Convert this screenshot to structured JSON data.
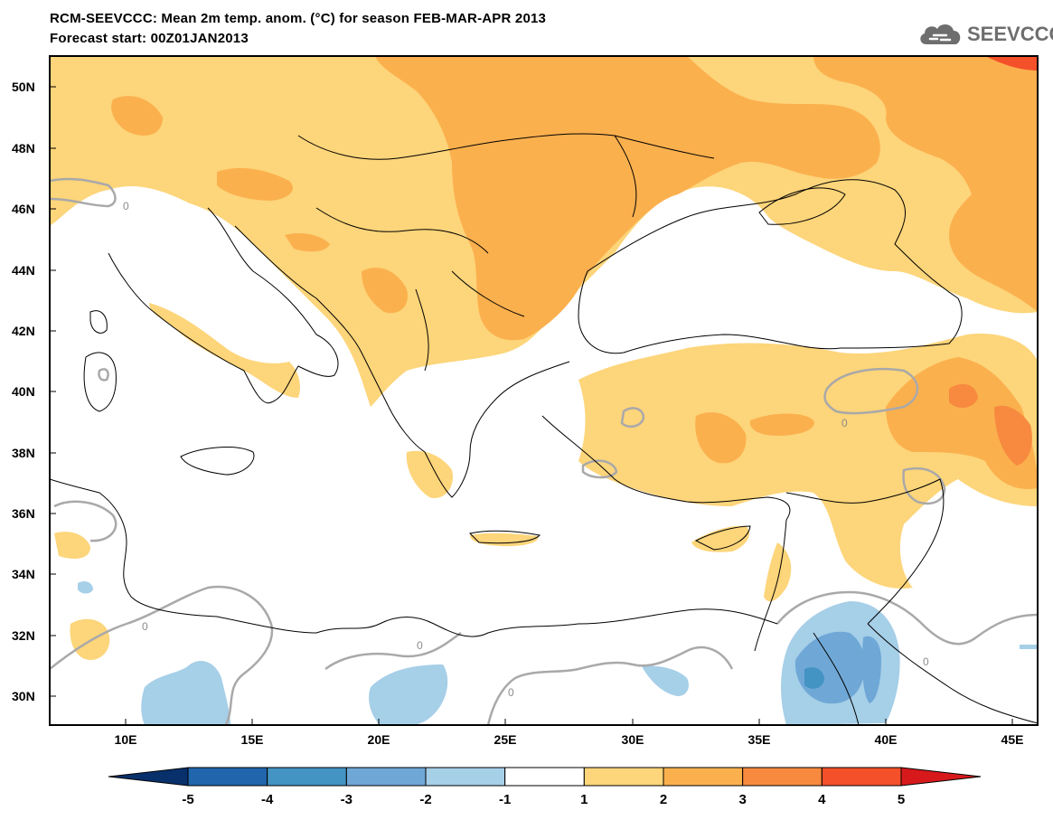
{
  "header": {
    "title_line1": "RCM-SEEVCCC: Mean 2m temp. anom. (°C) for season FEB-MAR-APR 2013",
    "title_line2": "Forecast start: 00Z01JAN2013",
    "logo_text": "SEEVCCC",
    "logo_icon": "cloud-icon"
  },
  "map": {
    "lon_range": [
      7,
      46
    ],
    "lat_range": [
      29,
      51
    ],
    "lat_ticks": [
      "50N",
      "48N",
      "46N",
      "44N",
      "42N",
      "40N",
      "38N",
      "36N",
      "34N",
      "32N",
      "30N"
    ],
    "lon_ticks": [
      "10E",
      "15E",
      "20E",
      "25E",
      "30E",
      "35E",
      "40E",
      "45E"
    ],
    "contour_labels": [
      "0",
      "0",
      "0",
      "0",
      "0",
      "0"
    ]
  },
  "colorbar": {
    "levels": [
      "-5",
      "-4",
      "-3",
      "-2",
      "-1",
      "1",
      "2",
      "3",
      "4",
      "5"
    ],
    "colors": [
      "#08306b",
      "#2166ac",
      "#4393c3",
      "#6fa8d6",
      "#a6cfe8",
      "#ffffff",
      "#fdd57a",
      "#fbb04e",
      "#f78a3f",
      "#f4502a",
      "#d7191c"
    ]
  }
}
